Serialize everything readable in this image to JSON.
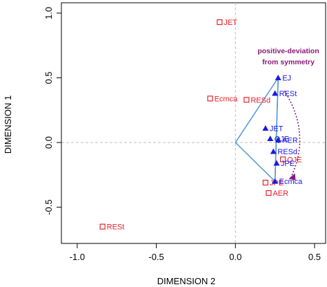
{
  "chart_data": {
    "type": "scatter",
    "xlabel": "DIMENSION 2",
    "ylabel": "DIMENSION 1",
    "xlim": [
      -1.1,
      0.57
    ],
    "ylim": [
      -0.78,
      1.08
    ],
    "xticks": [
      -1.0,
      -0.5,
      0.0,
      0.5
    ],
    "xtick_labels": [
      "-1.0",
      "-0.5",
      "0.0",
      "0.5"
    ],
    "yticks": [
      -0.5,
      0.0,
      0.5,
      1.0
    ],
    "ytick_labels": [
      "-0.5",
      "0.0",
      "0.5",
      "1.0"
    ],
    "grid": false,
    "reference_lines": {
      "x": 0,
      "y": 0
    },
    "series": [
      {
        "marker": "open-square",
        "color": "#e8202a",
        "points": [
          {
            "label": "JET",
            "x": -0.1,
            "y": 0.93
          },
          {
            "label": "Ecmca",
            "x": -0.16,
            "y": 0.34
          },
          {
            "label": "RESd",
            "x": 0.07,
            "y": 0.33
          },
          {
            "label": "RESt",
            "x": -0.84,
            "y": -0.65
          },
          {
            "label": "JPE",
            "x": 0.19,
            "y": -0.31
          },
          {
            "label": "AER",
            "x": 0.21,
            "y": -0.39
          },
          {
            "label": "QJE",
            "x": 0.3,
            "y": -0.13
          }
        ]
      },
      {
        "marker": "filled-triangle",
        "color": "#1a1ae0",
        "points": [
          {
            "label": "EJ",
            "x": 0.27,
            "y": 0.5
          },
          {
            "label": "RESt",
            "x": 0.25,
            "y": 0.38
          },
          {
            "label": "JET",
            "x": 0.19,
            "y": 0.11
          },
          {
            "label": "QJE",
            "x": 0.22,
            "y": 0.03
          },
          {
            "label": "AER",
            "x": 0.27,
            "y": 0.02
          },
          {
            "label": "RESd",
            "x": 0.24,
            "y": -0.07
          },
          {
            "label": "JPE",
            "x": 0.26,
            "y": -0.16
          },
          {
            "label": "Ecmca",
            "x": 0.25,
            "y": -0.3
          }
        ]
      }
    ],
    "polygon": {
      "color": "#5b9bd5",
      "points": [
        [
          0.0,
          0.0
        ],
        [
          0.27,
          0.5
        ],
        [
          0.25,
          -0.3
        ]
      ]
    },
    "polygon_inner_line": {
      "color": "#5b9bd5",
      "points": [
        [
          0.27,
          0.5
        ],
        [
          0.25,
          -0.3
        ]
      ]
    },
    "annotation": {
      "text_lines": [
        "positive-deviation",
        "from symmetry"
      ],
      "color": "#8b1a7a",
      "arrow_from": [
        0.31,
        0.4
      ],
      "arrow_to": [
        0.35,
        -0.27
      ]
    }
  }
}
